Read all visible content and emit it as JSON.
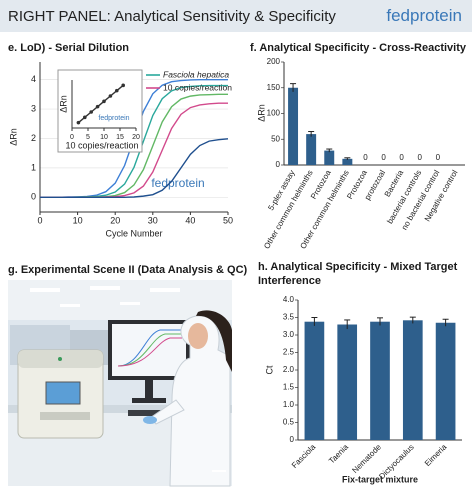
{
  "header": {
    "title": "RIGHT PANEL: Analytical Sensitivity & Specificity",
    "brand": "fedprotein"
  },
  "chart_data": [
    {
      "type": "line",
      "title": "e. LoD) - Serial Dilution",
      "x_label": "Cycle Number",
      "y_label": "ΔRn",
      "annotation": "fedprotein",
      "x": [
        0,
        2.5,
        5,
        7.5,
        10,
        12.5,
        15,
        17.5,
        20,
        22.5,
        25,
        27.5,
        30,
        32.5,
        35,
        37.5,
        40,
        42.5,
        45,
        47.5,
        50
      ],
      "series": [
        {
          "color": "#3d7fd6",
          "values": [
            0,
            0,
            0,
            0.01,
            0.01,
            0.03,
            0.07,
            0.19,
            0.48,
            1.08,
            2.0,
            2.92,
            3.52,
            3.81,
            3.93,
            3.97,
            3.99,
            4.0,
            4.0,
            4.0,
            4.0
          ]
        },
        {
          "name": "Fasciola hepatica",
          "color": "#2aa89c",
          "values": [
            0,
            0,
            0,
            0,
            0.01,
            0.01,
            0.03,
            0.07,
            0.18,
            0.45,
            1.02,
            1.9,
            2.78,
            3.35,
            3.62,
            3.73,
            3.77,
            3.79,
            3.8,
            3.8,
            3.8
          ]
        },
        {
          "color": "#62b865",
          "values": [
            0,
            0,
            0,
            0,
            0,
            0.01,
            0.01,
            0.02,
            0.06,
            0.16,
            0.42,
            0.94,
            1.75,
            2.56,
            3.08,
            3.34,
            3.44,
            3.48,
            3.49,
            3.5,
            3.5
          ]
        },
        {
          "name": "10 copies/reaction",
          "color": "#d24a8c",
          "values": [
            0,
            0,
            0,
            0,
            0,
            0,
            0,
            0.01,
            0.02,
            0.06,
            0.15,
            0.38,
            0.86,
            1.6,
            2.34,
            2.82,
            3.05,
            3.14,
            3.18,
            3.2,
            3.2
          ]
        },
        {
          "color": "#1f4f8e",
          "values": [
            0,
            0,
            0,
            0,
            0,
            0,
            0,
            0,
            0,
            0,
            0.01,
            0.04,
            0.09,
            0.24,
            0.54,
            1.0,
            1.46,
            1.76,
            1.91,
            1.96,
            1.99
          ]
        }
      ],
      "xlim": [
        0,
        50
      ],
      "xticks": [
        0,
        10,
        20,
        30,
        40,
        50
      ],
      "ylim": [
        -0.5,
        4.6
      ],
      "yticks": [
        0,
        1,
        2,
        3,
        4
      ],
      "grid": true
    },
    {
      "type": "line",
      "x_label": "10 copies/reaction",
      "y_label": "ΔRn",
      "annotation": "fedprotein",
      "markers": true,
      "x": [
        2,
        4,
        6,
        8,
        10,
        12,
        14,
        16
      ],
      "series": [
        {
          "color": "#333333",
          "values": [
            1,
            2,
            3,
            4,
            5,
            6,
            7,
            8
          ]
        }
      ],
      "xlim": [
        0,
        20
      ],
      "xticks": [
        0,
        5,
        10,
        15,
        20
      ],
      "ylim": [
        0,
        9
      ]
    },
    {
      "type": "bar",
      "title": "f. Analytical Specificity - Cross-Reactivity",
      "y_label": "ΔRn",
      "categories": [
        "5-plex assay",
        "Other common helminths",
        "Protozoa",
        "Other common helminths",
        "Protozoa",
        "protozoal",
        "Bacteria",
        "bacterial controls",
        "no bacterial control",
        "Negative control"
      ],
      "values": [
        150,
        60,
        28,
        12,
        0,
        0,
        0,
        0,
        0,
        0
      ],
      "errors": [
        8,
        5,
        3,
        2,
        null,
        null,
        null,
        null,
        null,
        null
      ],
      "value_labels": [
        null,
        null,
        null,
        null,
        "0",
        "0",
        "0",
        "0",
        "0",
        null
      ],
      "color": "#2e5f8c",
      "ylim": [
        0,
        200
      ],
      "yticks": [
        0,
        50,
        100,
        150,
        200
      ]
    },
    {
      "type": "bar",
      "title": "h. Analytical Specificity - Mixed Target Interference",
      "x_label": "Fix-target mixture",
      "y_label": "Ct",
      "categories": [
        "Fasciola",
        "Taenia",
        "Nematode",
        "Dictyocaulus",
        "Eimeria"
      ],
      "values": [
        3.38,
        3.3,
        3.38,
        3.42,
        3.35
      ],
      "errors": [
        0.12,
        0.13,
        0.11,
        0.09,
        0.1
      ],
      "color": "#2e5f8c",
      "ylim": [
        0,
        4.0
      ],
      "yticks": [
        0,
        0.5,
        {
          "value": 1,
          "label": "1.0"
        },
        1.5,
        {
          "value": 2,
          "label": "2.0"
        },
        2.5,
        {
          "value": 3,
          "label": "3.0"
        },
        3.5,
        {
          "value": 4,
          "label": "4.0"
        }
      ]
    }
  ],
  "scene": {
    "title": "g. Experimental Scene II (Data Analysis & QC)"
  }
}
